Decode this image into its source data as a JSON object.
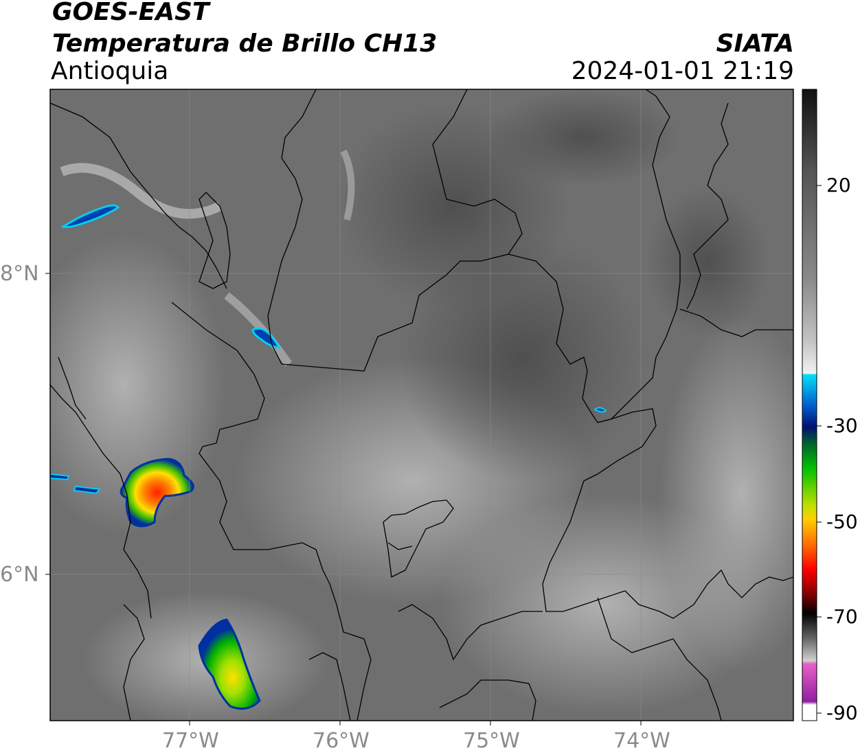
{
  "header": {
    "satellite": "GOES-EAST",
    "product": "Temperatura de Brillo CH13",
    "region": "Antioquia",
    "agency": "SIATA",
    "datetime": "2024-01-01 21:19"
  },
  "map": {
    "lat_labels": [
      "8°N",
      "6°N"
    ],
    "lon_labels": [
      "77°W",
      "76°W",
      "75°W",
      "74°W"
    ],
    "background_color": "#6f6f6f",
    "border_color": "#000000",
    "gridline_color": "#8c8c8c"
  },
  "colorbar": {
    "labels": [
      "20",
      "-30",
      "-50",
      "-70",
      "-90"
    ],
    "stops": [
      {
        "color": "#111111"
      },
      {
        "color": "#444444"
      },
      {
        "color": "#777777"
      },
      {
        "color": "#aaaaaa"
      },
      {
        "color": "#dddddd"
      },
      {
        "color": "#f5f5f5"
      },
      {
        "color": "#00d8f0"
      },
      {
        "color": "#0050c0"
      },
      {
        "color": "#001a80"
      },
      {
        "color": "#006030"
      },
      {
        "color": "#00c000"
      },
      {
        "color": "#a0e000"
      },
      {
        "color": "#ffe000"
      },
      {
        "color": "#ff8000"
      },
      {
        "color": "#ff0000"
      },
      {
        "color": "#800000"
      },
      {
        "color": "#000000"
      },
      {
        "color": "#555555"
      },
      {
        "color": "#bbbbbb"
      },
      {
        "color": "#e060c0"
      },
      {
        "color": "#9020a0"
      },
      {
        "color": "#ffffff"
      }
    ]
  }
}
